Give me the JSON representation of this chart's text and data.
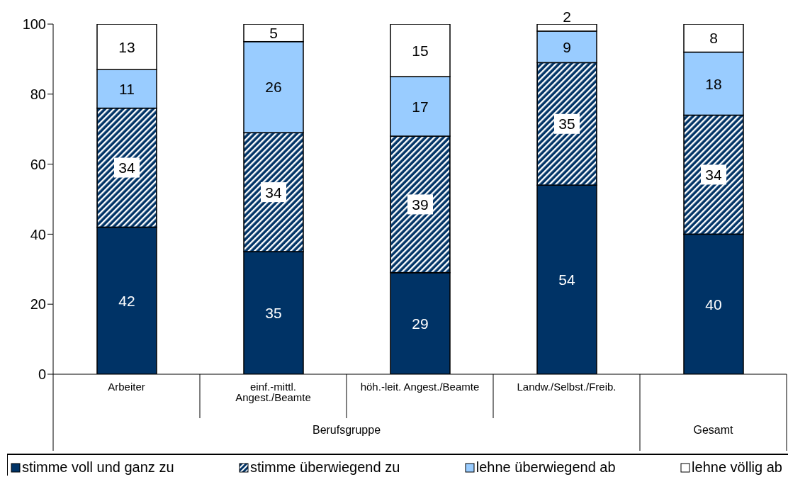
{
  "chart_data": {
    "type": "bar",
    "stacked": true,
    "categories": [
      "Arbeiter",
      "einf.-mittl. Angest./Beamte",
      "höh.-leit. Angest./Beamte",
      "Landw./Selbst./Freib.",
      null
    ],
    "series": [
      {
        "name": "stimme voll und ganz zu",
        "color": "#003366",
        "values": [
          42,
          35,
          29,
          54,
          40
        ]
      },
      {
        "name": "stimme überwiegend zu",
        "color": "#003366",
        "values": [
          34,
          34,
          39,
          35,
          34
        ]
      },
      {
        "name": "lehne überwiegend ab",
        "color": "#99ccff",
        "values": [
          11,
          26,
          17,
          9,
          18
        ]
      },
      {
        "name": "lehne völlig ab",
        "color": "#ffffff",
        "values": [
          13,
          5,
          15,
          2,
          8
        ]
      }
    ],
    "ylim": [
      0,
      100
    ],
    "yticks": [
      0,
      20,
      40,
      60,
      80,
      100
    ],
    "grid": false,
    "legend": "bottom",
    "data_labels": true,
    "annotations": [
      "Berufsgruppe",
      "Gesamt"
    ]
  }
}
